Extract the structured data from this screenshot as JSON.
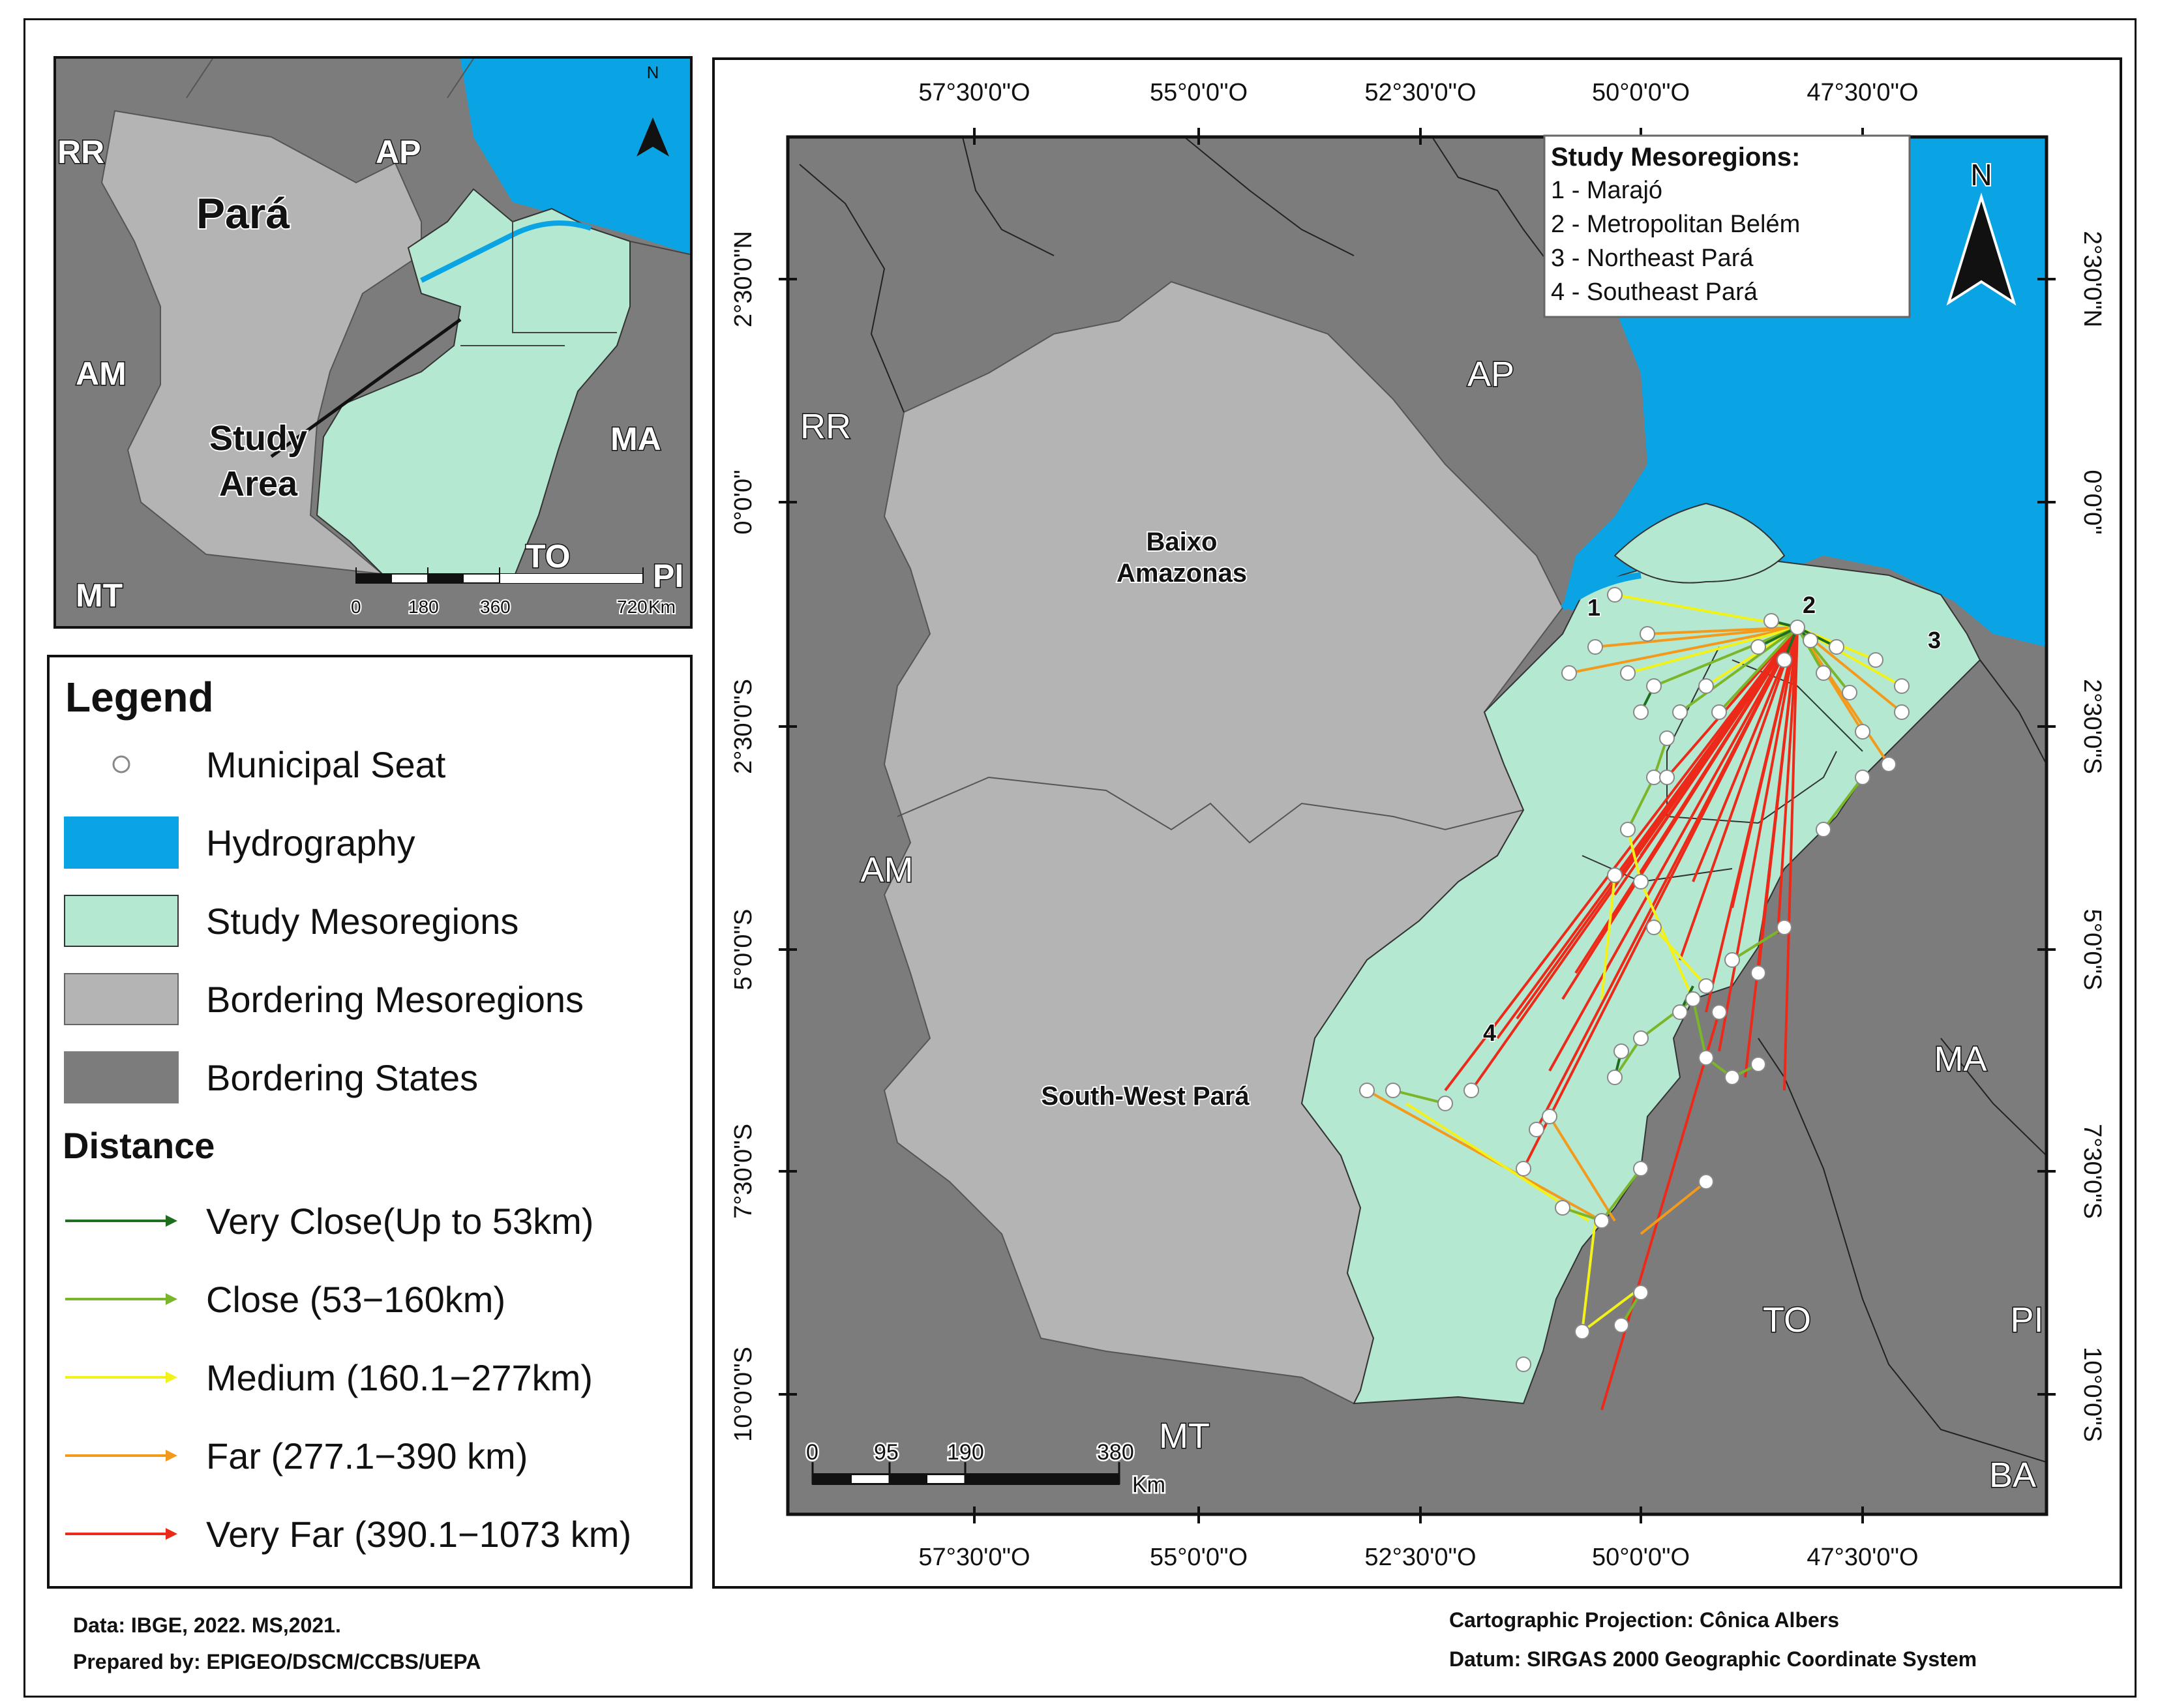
{
  "inset_map": {
    "states": [
      "RR",
      "AP",
      "AM",
      "MA",
      "TO",
      "PI",
      "MT"
    ],
    "region_label": "Pará",
    "study_area_label": [
      "Study",
      "Area"
    ],
    "scale": {
      "ticks": [
        "0",
        "180",
        "360",
        "720"
      ],
      "unit": "Km"
    },
    "north": "N"
  },
  "main_map": {
    "lon_ticks": [
      "57°30'0\"O",
      "55°0'0\"O",
      "52°30'0\"O",
      "50°0'0\"O",
      "47°30'0\"O"
    ],
    "lat_ticks": [
      "2°30'0\"N",
      "0°0'0\"",
      "2°30'0\"S",
      "5°0'0\"S",
      "7°30'0\"S",
      "10°0'0\"S"
    ],
    "states": [
      "RR",
      "AP",
      "AM",
      "MA",
      "TO",
      "PI",
      "MT",
      "BA"
    ],
    "bordering_mesoregions": [
      [
        "Baixo",
        "Amazonas"
      ],
      [
        "South-West Pará"
      ]
    ],
    "mesoregion_numbers": [
      "1",
      "2",
      "3",
      "4"
    ],
    "study_box": {
      "title": "Study Mesoregions:",
      "items": [
        "1 - Marajó",
        "2 - Metropolitan Belém",
        "3 - Northeast Pará",
        "4 - Southeast Pará"
      ]
    },
    "north": "N",
    "scale": {
      "ticks": [
        "0",
        "95",
        "190",
        "380"
      ],
      "unit": "Km"
    }
  },
  "legend": {
    "title": "Legend",
    "items": [
      {
        "label": "Municipal Seat",
        "kind": "point"
      },
      {
        "label": "Hydrography",
        "kind": "fill",
        "color": "#0aa4e4"
      },
      {
        "label": "Study Mesoregions",
        "kind": "fill",
        "color": "#b4e8d0"
      },
      {
        "label": "Bordering Mesoregions",
        "kind": "fill",
        "color": "#b4b4b4"
      },
      {
        "label": "Bordering States",
        "kind": "fill",
        "color": "#7c7c7c"
      }
    ],
    "distance_title": "Distance",
    "distances": [
      {
        "label": "Very Close(Up to 53km)",
        "color": "#1e6e1e"
      },
      {
        "label": "Close (53−160km)",
        "color": "#7ab52a"
      },
      {
        "label": "Medium (160.1−277km)",
        "color": "#f2f21a"
      },
      {
        "label": "Far (277.1−390 km)",
        "color": "#f39a1c"
      },
      {
        "label": "Very Far (390.1−1073 km)",
        "color": "#ec2a1a"
      }
    ]
  },
  "footer": {
    "data_source": "Data: IBGE, 2022. MS,2021.",
    "prepared_by": "Prepared by: EPIGEO/DSCM/CCBS/UEPA",
    "projection": "Cartographic Projection: Cônica Albers",
    "datum": "Datum: SIRGAS 2000 Geographic Coordinate System"
  }
}
